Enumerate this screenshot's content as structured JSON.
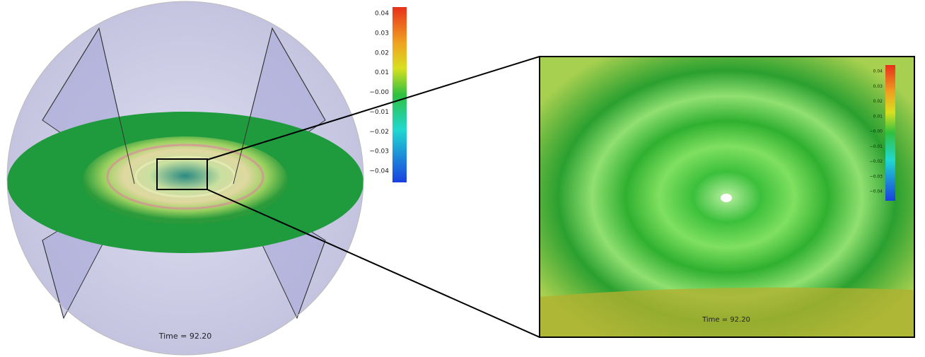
{
  "main_view": {
    "colorbar": {
      "labels": [
        "0.04",
        "0.03",
        "0.02",
        "0.01",
        "−0.00",
        "−0.01",
        "−0.02",
        "−0.03",
        "−0.04"
      ]
    },
    "time_label": "Time = 92.20"
  },
  "zoom_view": {
    "colorbar": {
      "labels": [
        "0.04",
        "0.03",
        "0.02",
        "0.01",
        "−0.00",
        "−0.01",
        "−0.02",
        "−0.03",
        "−0.04"
      ]
    },
    "time_label": "Time = 92.20"
  }
}
